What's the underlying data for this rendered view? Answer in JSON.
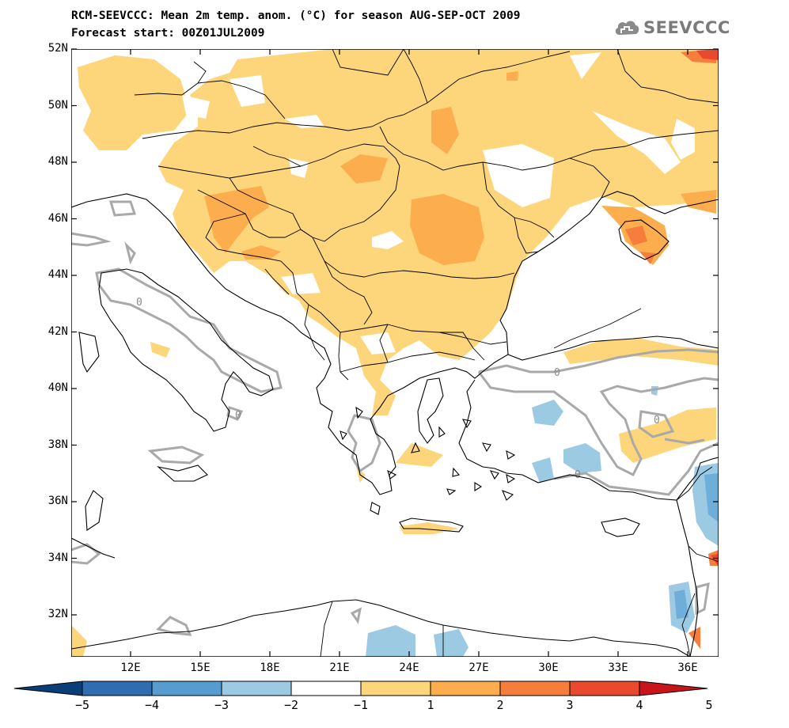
{
  "title": {
    "line1": "RCM-SEEVCCC: Mean 2m temp. anom. (°C) for season AUG-SEP-OCT 2009",
    "line2": "Forecast start: 00Z01JUL2009"
  },
  "logo": {
    "text": "SEEVCCC",
    "icon": "cloud-icon"
  },
  "map": {
    "lat_labels": [
      "52N",
      "50N",
      "48N",
      "46N",
      "44N",
      "42N",
      "40N",
      "38N",
      "36N",
      "34N",
      "32N"
    ],
    "lon_labels": [
      "12E",
      "15E",
      "18E",
      "21E",
      "24E",
      "27E",
      "30E",
      "33E",
      "36E"
    ],
    "contour_label": "0",
    "colors": {
      "warm1": "#fdd57a",
      "warm2": "#fcad4e",
      "warm3": "#f67d3c",
      "warm4": "#e9492d",
      "cool1": "#9ccae2",
      "cool2": "#6eaed8",
      "cool3": "#3c83c0",
      "contour": "#a9a9a9",
      "coast": "#000000"
    }
  },
  "colorbar": {
    "labels": [
      "−5",
      "−4",
      "−3",
      "−2",
      "−1",
      "1",
      "2",
      "3",
      "4",
      "5"
    ],
    "colors": [
      "#0a3e78",
      "#2f6db0",
      "#569dcf",
      "#9ccae2",
      "#ffffff",
      "#fdd57a",
      "#fcad4e",
      "#f67d3c",
      "#e9492d",
      "#c8141a"
    ]
  }
}
